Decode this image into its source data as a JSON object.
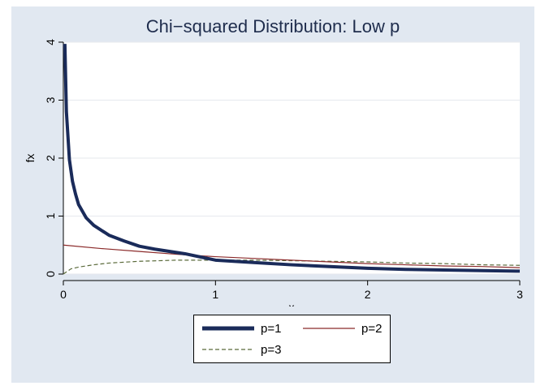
{
  "chart_data": {
    "type": "line",
    "title": "Chi−squared Distribution: Low p",
    "xlabel": "x",
    "ylabel": "fx",
    "xlim": [
      0,
      3
    ],
    "ylim": [
      0,
      4
    ],
    "xticks": [
      0,
      1,
      2,
      3
    ],
    "yticks": [
      0,
      1,
      2,
      3,
      4
    ],
    "grid": "horizontal",
    "legend_position": "bottom",
    "series": [
      {
        "name": "p=1",
        "color": "#1a2b5a",
        "style": "solid-thick",
        "x": [
          0.01,
          0.02,
          0.04,
          0.06,
          0.08,
          0.1,
          0.15,
          0.2,
          0.3,
          0.4,
          0.5,
          0.6,
          0.8,
          1.0,
          1.25,
          1.5,
          1.75,
          2.0,
          2.25,
          2.5,
          2.75,
          3.0
        ],
        "values": [
          3.97,
          2.8,
          1.97,
          1.6,
          1.38,
          1.2,
          0.97,
          0.84,
          0.67,
          0.57,
          0.48,
          0.43,
          0.35,
          0.24,
          0.2,
          0.16,
          0.13,
          0.1,
          0.08,
          0.07,
          0.06,
          0.05
        ]
      },
      {
        "name": "p=2",
        "color": "#8b2a2a",
        "style": "solid-thin",
        "x": [
          0.0,
          0.25,
          0.5,
          0.75,
          1.0,
          1.25,
          1.5,
          1.75,
          2.0,
          2.25,
          2.5,
          2.75,
          3.0
        ],
        "values": [
          0.5,
          0.44,
          0.39,
          0.34,
          0.3,
          0.27,
          0.24,
          0.21,
          0.18,
          0.16,
          0.14,
          0.13,
          0.11
        ]
      },
      {
        "name": "p=3",
        "color": "#5a6a3a",
        "style": "dashed",
        "x": [
          0.0,
          0.05,
          0.1,
          0.2,
          0.3,
          0.5,
          0.75,
          1.0,
          1.25,
          1.5,
          1.75,
          2.0,
          2.25,
          2.5,
          2.75,
          3.0
        ],
        "values": [
          0.0,
          0.09,
          0.12,
          0.16,
          0.19,
          0.22,
          0.24,
          0.24,
          0.24,
          0.23,
          0.22,
          0.21,
          0.19,
          0.18,
          0.16,
          0.15
        ]
      }
    ]
  }
}
